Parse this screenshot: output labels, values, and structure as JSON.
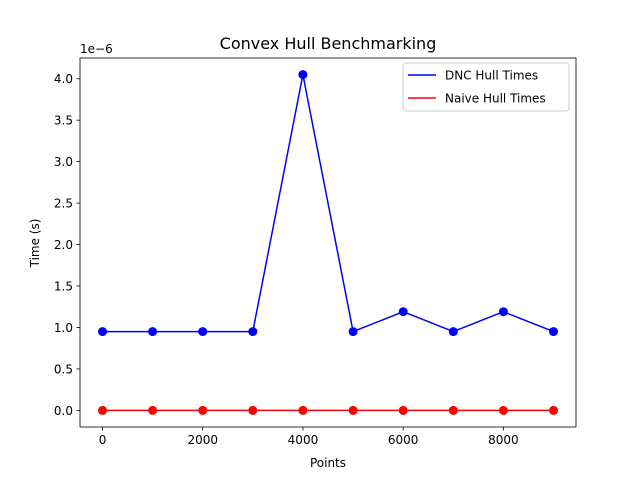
{
  "chart_data": {
    "type": "line",
    "title": "Convex Hull Benchmarking",
    "xlabel": "Points",
    "ylabel": "Time (s)",
    "y_offset_text": "1e−6",
    "y_scale_factor": 1e-06,
    "xlim": [
      -450,
      9450
    ],
    "ylim": [
      -0.2,
      4.25
    ],
    "x_ticks": [
      0,
      2000,
      4000,
      6000,
      8000
    ],
    "x_tick_labels": [
      "0",
      "2000",
      "4000",
      "6000",
      "8000"
    ],
    "y_ticks": [
      0.0,
      0.5,
      1.0,
      1.5,
      2.0,
      2.5,
      3.0,
      3.5,
      4.0
    ],
    "y_tick_labels": [
      "0.0",
      "0.5",
      "1.0",
      "1.5",
      "2.0",
      "2.5",
      "3.0",
      "3.5",
      "4.0"
    ],
    "grid": false,
    "legend_position": "top-right",
    "x": [
      0,
      1000,
      2000,
      3000,
      4000,
      5000,
      6000,
      7000,
      8000,
      9000
    ],
    "series": [
      {
        "name": "DNC Hull Times",
        "color": "#0000ff",
        "values": [
          0.95,
          0.95,
          0.95,
          0.95,
          4.05,
          0.95,
          1.19,
          0.95,
          1.19,
          0.95
        ]
      },
      {
        "name": "Naive Hull Times",
        "color": "#ff0000",
        "values": [
          0,
          0,
          0,
          0,
          0,
          0,
          0,
          0,
          0,
          0
        ]
      }
    ]
  }
}
